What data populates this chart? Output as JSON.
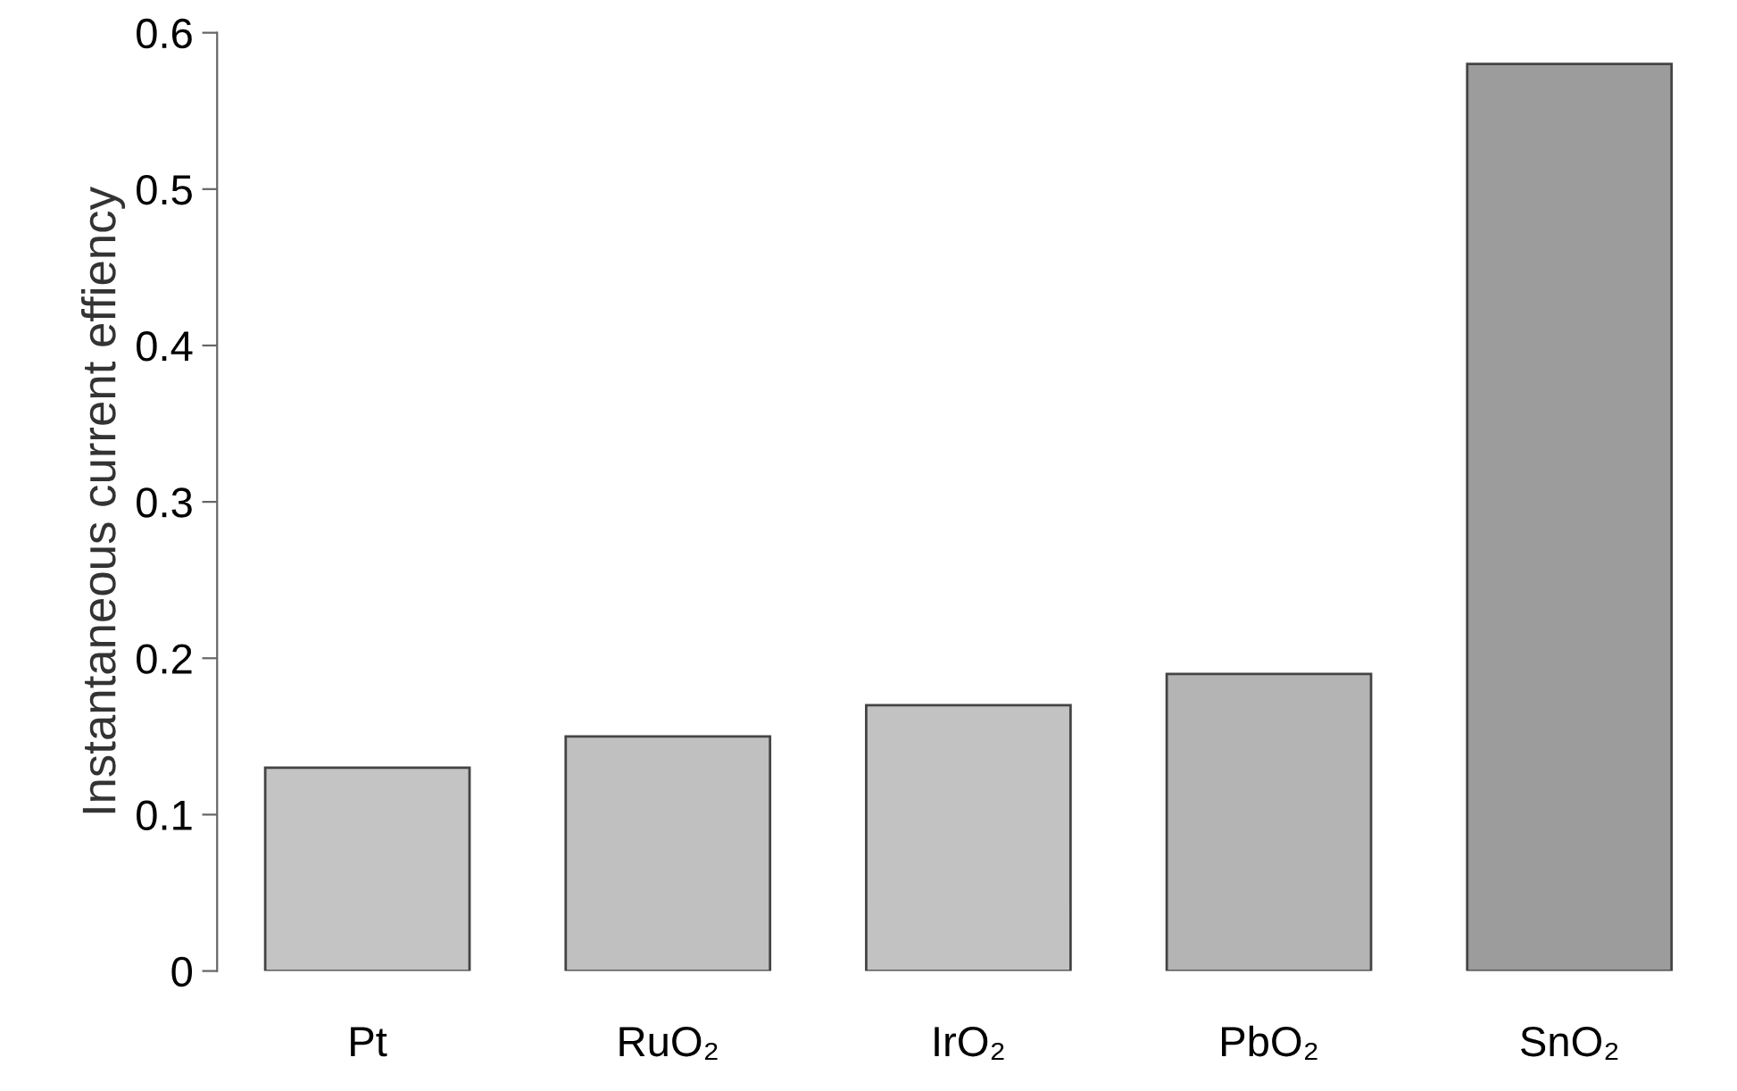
{
  "chart_data": {
    "type": "bar",
    "ylabel": "Instantaneous current effiency",
    "categories": [
      "Pt",
      "RuO₂",
      "IrO₂",
      "PbO₂",
      "SnO₂"
    ],
    "values": [
      0.13,
      0.15,
      0.17,
      0.19,
      0.58
    ],
    "colors": [
      "#c4c4c4",
      "#c0c0c0",
      "#c2c2c2",
      "#b4b4b4",
      "#9c9c9c"
    ],
    "ylim": [
      0,
      0.6
    ],
    "yticks": [
      0,
      0.1,
      0.2,
      0.3,
      0.4,
      0.5,
      0.6
    ],
    "grid": false
  }
}
